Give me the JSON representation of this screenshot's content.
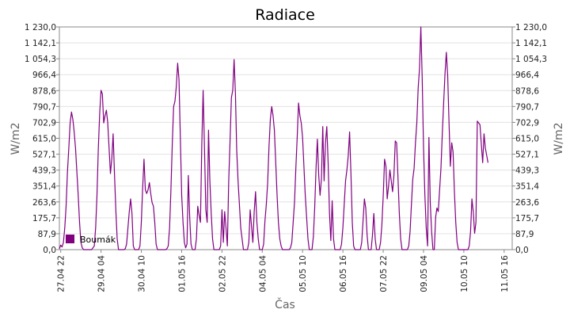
{
  "chart_data": {
    "type": "line",
    "title": "Radiace",
    "xlabel": "Čas",
    "ylabel": "W/m2",
    "ylim": [
      0,
      1230
    ],
    "yticks": [
      "0,0",
      "87,9",
      "175,7",
      "263,6",
      "351,4",
      "439,3",
      "527,1",
      "615,0",
      "702,9",
      "790,7",
      "878,6",
      "966,4",
      "1 054,3",
      "1 142,1",
      "1 230,0"
    ],
    "xticks": [
      "27.04 22",
      "29.04 04",
      "30.04 10",
      "01.05 16",
      "02.05 22",
      "04.05 04",
      "05.05 10",
      "06.05 16",
      "07.05 22",
      "09.05 04",
      "10.05 10",
      "11.05 16"
    ],
    "xtick_hours": [
      22,
      52,
      82,
      112,
      142,
      172,
      202,
      232,
      262,
      292,
      322,
      352
    ],
    "xlim_hours": [
      21,
      358
    ],
    "grid": true,
    "legend_position": "bottom-left",
    "color": "#800080",
    "series": [
      {
        "name": "Boumák",
        "points": [
          [
            21,
            5
          ],
          [
            22,
            25
          ],
          [
            23,
            15
          ],
          [
            24,
            40
          ],
          [
            25,
            120
          ],
          [
            26,
            240
          ],
          [
            27,
            430
          ],
          [
            28,
            560
          ],
          [
            29,
            700
          ],
          [
            30,
            760
          ],
          [
            31,
            720
          ],
          [
            32,
            650
          ],
          [
            33,
            560
          ],
          [
            34,
            430
          ],
          [
            35,
            300
          ],
          [
            36,
            150
          ],
          [
            37,
            40
          ],
          [
            38,
            10
          ],
          [
            39,
            0
          ],
          [
            45,
            0
          ],
          [
            46,
            10
          ],
          [
            47,
            20
          ],
          [
            48,
            120
          ],
          [
            49,
            300
          ],
          [
            50,
            560
          ],
          [
            51,
            750
          ],
          [
            52,
            880
          ],
          [
            53,
            860
          ],
          [
            54,
            700
          ],
          [
            55,
            740
          ],
          [
            56,
            770
          ],
          [
            57,
            700
          ],
          [
            58,
            560
          ],
          [
            59,
            420
          ],
          [
            60,
            500
          ],
          [
            61,
            640
          ],
          [
            62,
            420
          ],
          [
            63,
            220
          ],
          [
            64,
            60
          ],
          [
            65,
            0
          ],
          [
            69,
            0
          ],
          [
            70,
            5
          ],
          [
            71,
            30
          ],
          [
            72,
            120
          ],
          [
            73,
            210
          ],
          [
            74,
            280
          ],
          [
            75,
            200
          ],
          [
            76,
            20
          ],
          [
            77,
            0
          ],
          [
            80,
            0
          ],
          [
            81,
            20
          ],
          [
            82,
            150
          ],
          [
            83,
            340
          ],
          [
            84,
            500
          ],
          [
            85,
            330
          ],
          [
            86,
            310
          ],
          [
            87,
            330
          ],
          [
            88,
            370
          ],
          [
            89,
            310
          ],
          [
            90,
            260
          ],
          [
            91,
            240
          ],
          [
            92,
            150
          ],
          [
            93,
            30
          ],
          [
            94,
            0
          ],
          [
            100,
            0
          ],
          [
            101,
            5
          ],
          [
            102,
            20
          ],
          [
            103,
            120
          ],
          [
            104,
            330
          ],
          [
            105,
            580
          ],
          [
            106,
            790
          ],
          [
            107,
            820
          ],
          [
            108,
            900
          ],
          [
            109,
            1030
          ],
          [
            110,
            940
          ],
          [
            111,
            620
          ],
          [
            112,
            300
          ],
          [
            113,
            150
          ],
          [
            114,
            40
          ],
          [
            115,
            10
          ],
          [
            116,
            30
          ],
          [
            117,
            410
          ],
          [
            118,
            180
          ],
          [
            119,
            30
          ],
          [
            120,
            0
          ],
          [
            122,
            0
          ],
          [
            123,
            60
          ],
          [
            124,
            240
          ],
          [
            125,
            190
          ],
          [
            126,
            150
          ],
          [
            127,
            580
          ],
          [
            128,
            880
          ],
          [
            129,
            560
          ],
          [
            130,
            220
          ],
          [
            131,
            150
          ],
          [
            132,
            660
          ],
          [
            133,
            380
          ],
          [
            134,
            200
          ],
          [
            135,
            60
          ],
          [
            136,
            0
          ],
          [
            140,
            0
          ],
          [
            141,
            20
          ],
          [
            142,
            220
          ],
          [
            143,
            40
          ],
          [
            144,
            210
          ],
          [
            145,
            120
          ],
          [
            146,
            20
          ],
          [
            147,
            380
          ],
          [
            148,
            600
          ],
          [
            149,
            840
          ],
          [
            150,
            880
          ],
          [
            151,
            1050
          ],
          [
            152,
            860
          ],
          [
            153,
            550
          ],
          [
            154,
            380
          ],
          [
            155,
            250
          ],
          [
            156,
            120
          ],
          [
            157,
            60
          ],
          [
            158,
            0
          ],
          [
            161,
            0
          ],
          [
            162,
            40
          ],
          [
            163,
            220
          ],
          [
            164,
            130
          ],
          [
            165,
            40
          ],
          [
            166,
            210
          ],
          [
            167,
            320
          ],
          [
            168,
            150
          ],
          [
            169,
            60
          ],
          [
            170,
            0
          ],
          [
            172,
            0
          ],
          [
            173,
            30
          ],
          [
            174,
            160
          ],
          [
            175,
            250
          ],
          [
            176,
            370
          ],
          [
            177,
            570
          ],
          [
            178,
            720
          ],
          [
            179,
            790
          ],
          [
            180,
            740
          ],
          [
            181,
            660
          ],
          [
            182,
            480
          ],
          [
            183,
            300
          ],
          [
            184,
            150
          ],
          [
            185,
            60
          ],
          [
            186,
            20
          ],
          [
            187,
            0
          ],
          [
            192,
            0
          ],
          [
            193,
            10
          ],
          [
            194,
            40
          ],
          [
            195,
            150
          ],
          [
            196,
            260
          ],
          [
            197,
            450
          ],
          [
            198,
            620
          ],
          [
            199,
            810
          ],
          [
            200,
            740
          ],
          [
            201,
            700
          ],
          [
            202,
            620
          ],
          [
            203,
            460
          ],
          [
            204,
            300
          ],
          [
            205,
            180
          ],
          [
            206,
            60
          ],
          [
            207,
            0
          ],
          [
            209,
            0
          ],
          [
            210,
            70
          ],
          [
            211,
            230
          ],
          [
            212,
            450
          ],
          [
            213,
            610
          ],
          [
            214,
            410
          ],
          [
            215,
            300
          ],
          [
            216,
            390
          ],
          [
            217,
            680
          ],
          [
            218,
            380
          ],
          [
            219,
            590
          ],
          [
            220,
            680
          ],
          [
            221,
            480
          ],
          [
            222,
            200
          ],
          [
            223,
            50
          ],
          [
            224,
            270
          ],
          [
            225,
            60
          ],
          [
            226,
            0
          ],
          [
            230,
            0
          ],
          [
            231,
            30
          ],
          [
            232,
            120
          ],
          [
            233,
            250
          ],
          [
            234,
            380
          ],
          [
            235,
            440
          ],
          [
            236,
            520
          ],
          [
            237,
            650
          ],
          [
            238,
            420
          ],
          [
            239,
            150
          ],
          [
            240,
            20
          ],
          [
            241,
            0
          ],
          [
            245,
            0
          ],
          [
            246,
            40
          ],
          [
            247,
            160
          ],
          [
            248,
            280
          ],
          [
            249,
            230
          ],
          [
            250,
            80
          ],
          [
            251,
            0
          ],
          [
            253,
            0
          ],
          [
            254,
            80
          ],
          [
            255,
            200
          ],
          [
            256,
            60
          ],
          [
            257,
            0
          ],
          [
            259,
            0
          ],
          [
            260,
            40
          ],
          [
            261,
            140
          ],
          [
            262,
            300
          ],
          [
            263,
            500
          ],
          [
            264,
            460
          ],
          [
            265,
            280
          ],
          [
            266,
            350
          ],
          [
            267,
            440
          ],
          [
            268,
            380
          ],
          [
            269,
            320
          ],
          [
            270,
            410
          ],
          [
            271,
            600
          ],
          [
            272,
            590
          ],
          [
            273,
            400
          ],
          [
            274,
            200
          ],
          [
            275,
            60
          ],
          [
            276,
            0
          ],
          [
            280,
            0
          ],
          [
            281,
            20
          ],
          [
            282,
            100
          ],
          [
            283,
            250
          ],
          [
            284,
            390
          ],
          [
            285,
            450
          ],
          [
            286,
            590
          ],
          [
            287,
            700
          ],
          [
            288,
            890
          ],
          [
            289,
            1000
          ],
          [
            290,
            1230
          ],
          [
            291,
            950
          ],
          [
            292,
            560
          ],
          [
            293,
            300
          ],
          [
            294,
            120
          ],
          [
            295,
            20
          ],
          [
            296,
            620
          ],
          [
            297,
            260
          ],
          [
            298,
            100
          ],
          [
            299,
            0
          ],
          [
            300,
            0
          ],
          [
            301,
            180
          ],
          [
            302,
            230
          ],
          [
            303,
            210
          ],
          [
            304,
            330
          ],
          [
            305,
            450
          ],
          [
            306,
            640
          ],
          [
            307,
            810
          ],
          [
            308,
            970
          ],
          [
            309,
            1090
          ],
          [
            310,
            960
          ],
          [
            311,
            700
          ],
          [
            312,
            460
          ],
          [
            313,
            590
          ],
          [
            314,
            540
          ],
          [
            315,
            320
          ],
          [
            316,
            150
          ],
          [
            317,
            40
          ],
          [
            318,
            0
          ],
          [
            325,
            0
          ],
          [
            326,
            20
          ],
          [
            327,
            100
          ],
          [
            328,
            280
          ],
          [
            329,
            210
          ],
          [
            330,
            90
          ],
          [
            331,
            150
          ],
          [
            332,
            710
          ],
          [
            333,
            700
          ],
          [
            334,
            690
          ],
          [
            335,
            580
          ],
          [
            336,
            480
          ],
          [
            337,
            640
          ],
          [
            338,
            560
          ],
          [
            339,
            520
          ],
          [
            340,
            480
          ]
        ]
      }
    ]
  }
}
